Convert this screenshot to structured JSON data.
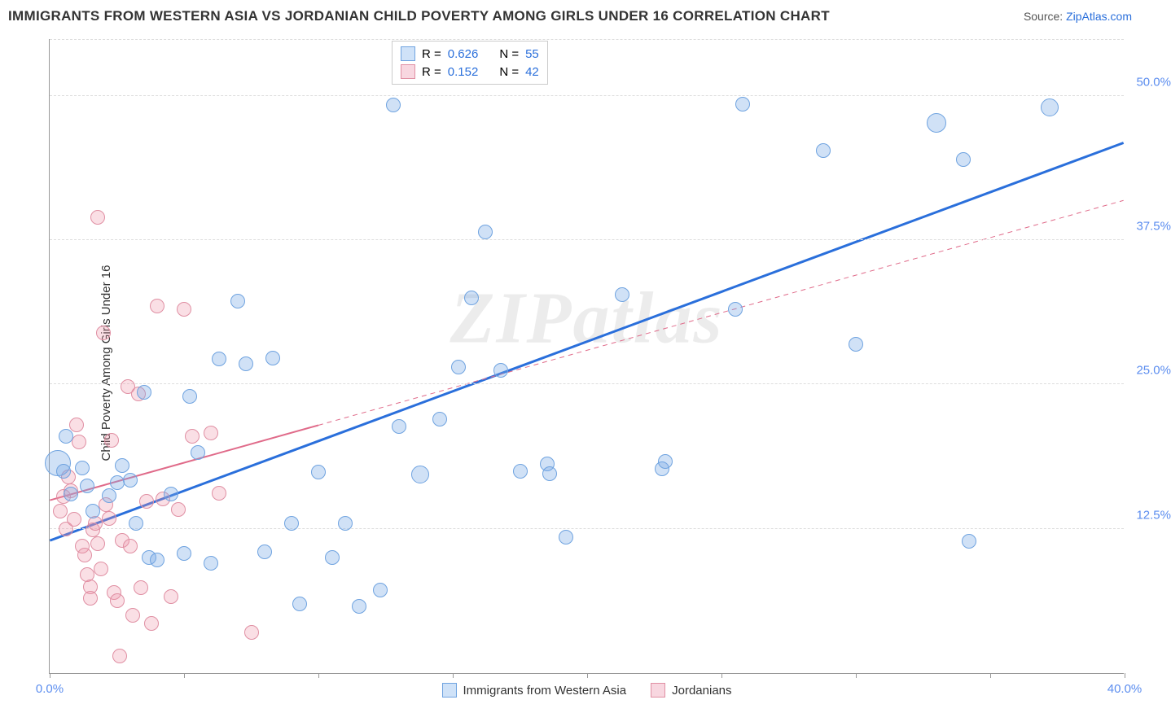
{
  "title": "IMMIGRANTS FROM WESTERN ASIA VS JORDANIAN CHILD POVERTY AMONG GIRLS UNDER 16 CORRELATION CHART",
  "source_label": "Source: ",
  "source_name": "ZipAtlas.com",
  "watermark": "ZIPatlas",
  "chart": {
    "type": "scatter",
    "ylabel": "Child Poverty Among Girls Under 16",
    "xlim": [
      0,
      40
    ],
    "ylim": [
      0,
      55
    ],
    "xtick_positions": [
      0,
      5,
      10,
      15,
      20,
      25,
      30,
      35,
      40
    ],
    "xtick_labels": {
      "0": "0.0%",
      "40": "40.0%"
    },
    "ytick_labels": [
      {
        "v": 12.5,
        "t": "12.5%"
      },
      {
        "v": 25.0,
        "t": "25.0%"
      },
      {
        "v": 37.5,
        "t": "37.5%"
      },
      {
        "v": 50.0,
        "t": "50.0%"
      }
    ],
    "background_color": "#ffffff",
    "grid_color": "#dddddd",
    "colors": {
      "blue": "#6fa3e0",
      "pink": "#e08fa3",
      "blue_line": "#2a6fdb",
      "pink_line": "#e06b8a",
      "tick_label": "#5b8def"
    },
    "point_radius": 9,
    "legend_top": [
      {
        "color": "blue",
        "r_label": "R =",
        "r": "0.626",
        "n_label": "N =",
        "n": "55"
      },
      {
        "color": "pink",
        "r_label": "R =",
        "r": "0.152",
        "n_label": "N =",
        "n": "42"
      }
    ],
    "legend_bottom": [
      {
        "color": "blue",
        "label": "Immigrants from Western Asia"
      },
      {
        "color": "pink",
        "label": "Jordanians"
      }
    ],
    "trend_lines": [
      {
        "color": "blue",
        "style": "solid",
        "width": 3,
        "x1": 0,
        "y1": 11.5,
        "x2": 40,
        "y2": 46,
        "dash": false,
        "x_solid_end": 40
      },
      {
        "color": "pink",
        "style": "solid_then_dash",
        "width": 2,
        "x1": 0,
        "y1": 15,
        "x2": 40,
        "y2": 41,
        "x_solid_end": 10
      }
    ],
    "series": {
      "blue": [
        {
          "x": 0.3,
          "y": 18.2,
          "r": 16
        },
        {
          "x": 0.5,
          "y": 17.5
        },
        {
          "x": 0.6,
          "y": 20.5
        },
        {
          "x": 0.8,
          "y": 15.5
        },
        {
          "x": 1.2,
          "y": 17.8
        },
        {
          "x": 1.4,
          "y": 16.2
        },
        {
          "x": 1.6,
          "y": 14.0
        },
        {
          "x": 2.2,
          "y": 15.4
        },
        {
          "x": 2.5,
          "y": 16.5
        },
        {
          "x": 2.7,
          "y": 18.0
        },
        {
          "x": 3.0,
          "y": 16.7
        },
        {
          "x": 3.2,
          "y": 13.0
        },
        {
          "x": 3.5,
          "y": 24.3
        },
        {
          "x": 3.7,
          "y": 10.0
        },
        {
          "x": 4.0,
          "y": 9.8
        },
        {
          "x": 4.5,
          "y": 15.5
        },
        {
          "x": 5.0,
          "y": 10.4
        },
        {
          "x": 5.2,
          "y": 24.0
        },
        {
          "x": 5.5,
          "y": 19.1
        },
        {
          "x": 6.0,
          "y": 9.5
        },
        {
          "x": 6.3,
          "y": 27.2
        },
        {
          "x": 7.0,
          "y": 32.2
        },
        {
          "x": 7.3,
          "y": 26.8
        },
        {
          "x": 8.0,
          "y": 10.5
        },
        {
          "x": 8.3,
          "y": 27.3
        },
        {
          "x": 9.0,
          "y": 13.0
        },
        {
          "x": 9.3,
          "y": 6.0
        },
        {
          "x": 10.0,
          "y": 17.4
        },
        {
          "x": 10.5,
          "y": 10.0
        },
        {
          "x": 11.0,
          "y": 13.0
        },
        {
          "x": 11.5,
          "y": 5.8
        },
        {
          "x": 12.3,
          "y": 7.2
        },
        {
          "x": 12.8,
          "y": 49.2
        },
        {
          "x": 13.0,
          "y": 21.4
        },
        {
          "x": 13.8,
          "y": 17.2,
          "r": 11
        },
        {
          "x": 14.5,
          "y": 22.0
        },
        {
          "x": 15.2,
          "y": 26.5
        },
        {
          "x": 15.7,
          "y": 32.5
        },
        {
          "x": 16.2,
          "y": 38.2
        },
        {
          "x": 16.8,
          "y": 26.2
        },
        {
          "x": 17.5,
          "y": 17.5
        },
        {
          "x": 18.5,
          "y": 18.1
        },
        {
          "x": 18.6,
          "y": 17.3
        },
        {
          "x": 19.2,
          "y": 11.8
        },
        {
          "x": 21.3,
          "y": 32.8
        },
        {
          "x": 22.8,
          "y": 17.7
        },
        {
          "x": 25.5,
          "y": 31.5
        },
        {
          "x": 25.8,
          "y": 49.3
        },
        {
          "x": 28.8,
          "y": 45.3
        },
        {
          "x": 30.0,
          "y": 28.5
        },
        {
          "x": 33.0,
          "y": 47.7,
          "r": 12
        },
        {
          "x": 34.0,
          "y": 44.5
        },
        {
          "x": 34.2,
          "y": 11.4
        },
        {
          "x": 37.2,
          "y": 49.0,
          "r": 11
        },
        {
          "x": 22.9,
          "y": 18.3
        }
      ],
      "pink": [
        {
          "x": 0.4,
          "y": 14.0
        },
        {
          "x": 0.5,
          "y": 15.3
        },
        {
          "x": 0.6,
          "y": 12.5
        },
        {
          "x": 0.7,
          "y": 17.0
        },
        {
          "x": 0.8,
          "y": 15.8
        },
        {
          "x": 0.9,
          "y": 13.3
        },
        {
          "x": 1.0,
          "y": 21.5
        },
        {
          "x": 1.1,
          "y": 20.0
        },
        {
          "x": 1.2,
          "y": 11.0
        },
        {
          "x": 1.3,
          "y": 10.2
        },
        {
          "x": 1.4,
          "y": 8.5
        },
        {
          "x": 1.5,
          "y": 7.5
        },
        {
          "x": 1.5,
          "y": 6.5
        },
        {
          "x": 1.6,
          "y": 12.4
        },
        {
          "x": 1.7,
          "y": 13.0
        },
        {
          "x": 1.8,
          "y": 39.5
        },
        {
          "x": 1.8,
          "y": 11.2
        },
        {
          "x": 1.9,
          "y": 9.0
        },
        {
          "x": 2.0,
          "y": 29.5
        },
        {
          "x": 2.1,
          "y": 14.6
        },
        {
          "x": 2.2,
          "y": 13.4
        },
        {
          "x": 2.3,
          "y": 20.2
        },
        {
          "x": 2.4,
          "y": 7.0
        },
        {
          "x": 2.5,
          "y": 6.3
        },
        {
          "x": 2.6,
          "y": 1.5
        },
        {
          "x": 2.7,
          "y": 11.5
        },
        {
          "x": 2.9,
          "y": 24.8
        },
        {
          "x": 3.0,
          "y": 11.0
        },
        {
          "x": 3.1,
          "y": 5.0
        },
        {
          "x": 3.3,
          "y": 24.2
        },
        {
          "x": 3.4,
          "y": 7.4
        },
        {
          "x": 3.6,
          "y": 14.9
        },
        {
          "x": 4.0,
          "y": 31.8
        },
        {
          "x": 4.2,
          "y": 15.1
        },
        {
          "x": 4.5,
          "y": 6.6
        },
        {
          "x": 4.8,
          "y": 14.2
        },
        {
          "x": 5.0,
          "y": 31.5
        },
        {
          "x": 5.3,
          "y": 20.5
        },
        {
          "x": 6.0,
          "y": 20.8
        },
        {
          "x": 6.3,
          "y": 15.6
        },
        {
          "x": 7.5,
          "y": 3.5
        },
        {
          "x": 3.8,
          "y": 4.3
        }
      ]
    }
  }
}
